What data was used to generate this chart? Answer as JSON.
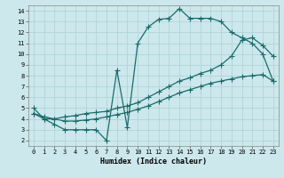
{
  "xlabel": "Humidex (Indice chaleur)",
  "xlim": [
    -0.5,
    23.5
  ],
  "ylim": [
    1.5,
    14.5
  ],
  "xticks": [
    0,
    1,
    2,
    3,
    4,
    5,
    6,
    7,
    8,
    9,
    10,
    11,
    12,
    13,
    14,
    15,
    16,
    17,
    18,
    19,
    20,
    21,
    22,
    23
  ],
  "yticks": [
    2,
    3,
    4,
    5,
    6,
    7,
    8,
    9,
    10,
    11,
    12,
    13,
    14
  ],
  "bg_color": "#cce8ec",
  "line_color": "#1a6b6b",
  "grid_color": "#b0d4d8",
  "curve1_x": [
    0,
    1,
    2,
    3,
    4,
    5,
    6,
    7,
    8,
    9,
    10,
    11,
    12,
    13,
    14,
    15,
    16,
    17,
    18,
    19,
    20,
    21,
    22,
    23
  ],
  "curve1_y": [
    5.0,
    4.0,
    3.5,
    3.0,
    3.0,
    3.0,
    3.0,
    2.0,
    8.5,
    3.2,
    11.0,
    12.5,
    13.2,
    13.3,
    14.2,
    13.3,
    13.3,
    13.3,
    13.0,
    12.0,
    11.5,
    11.0,
    10.0,
    7.5
  ],
  "curve2_x": [
    0,
    1,
    2,
    3,
    4,
    5,
    6,
    7,
    8,
    9,
    10,
    11,
    12,
    13,
    14,
    15,
    16,
    17,
    18,
    19,
    20,
    21,
    22,
    23
  ],
  "curve2_y": [
    4.5,
    4.0,
    4.0,
    4.2,
    4.3,
    4.5,
    4.6,
    4.7,
    5.0,
    5.2,
    5.5,
    6.0,
    6.5,
    7.0,
    7.5,
    7.8,
    8.2,
    8.5,
    9.0,
    9.8,
    11.3,
    11.5,
    10.8,
    9.8
  ],
  "curve3_x": [
    0,
    1,
    2,
    3,
    4,
    5,
    6,
    7,
    8,
    9,
    10,
    11,
    12,
    13,
    14,
    15,
    16,
    17,
    18,
    19,
    20,
    21,
    22,
    23
  ],
  "curve3_y": [
    4.5,
    4.2,
    4.0,
    3.8,
    3.8,
    3.9,
    4.0,
    4.2,
    4.4,
    4.6,
    4.9,
    5.2,
    5.6,
    6.0,
    6.4,
    6.7,
    7.0,
    7.3,
    7.5,
    7.7,
    7.9,
    8.0,
    8.1,
    7.5
  ],
  "marker": "+",
  "markersize": 4,
  "linewidth": 0.9,
  "tick_fontsize": 5,
  "xlabel_fontsize": 6
}
